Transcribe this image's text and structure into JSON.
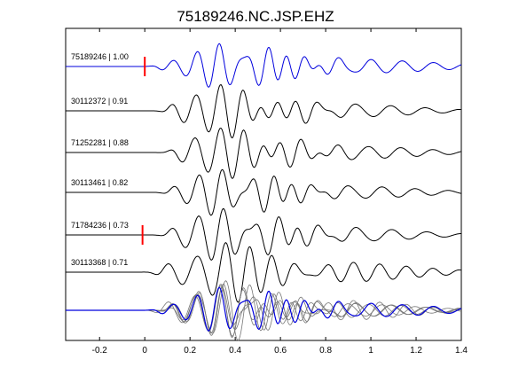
{
  "chart_data": {
    "type": "line",
    "title": "75189246.NC.JSP.EHZ",
    "xlabel": "",
    "ylabel": "",
    "xlim": [
      -0.35,
      1.4
    ],
    "xticks": [
      -0.2,
      0,
      0.2,
      0.4,
      0.6,
      0.8,
      1,
      1.2,
      1.4
    ],
    "xtick_labels": [
      "-0.2",
      "0",
      "0.2",
      "0.4",
      "0.6",
      "0.8",
      "1",
      "1.2",
      "1.4"
    ],
    "grid": false,
    "colors": {
      "reference": "#0000dd",
      "trace": "#000000",
      "stack_gray": "#777777",
      "pick": "#ff0000",
      "axes": "#000000"
    },
    "traces": [
      {
        "label": "75189246 | 1.00",
        "event_id": "75189246",
        "correlation": 1.0,
        "color": "#0000dd",
        "pick_time": 0.0,
        "wave": {
          "onset": 0.05,
          "a": 0.9,
          "packets": [
            {
              "f": 9.6,
              "c": 0.35,
              "w": 0.22,
              "a": 1.0
            },
            {
              "f": 13.1,
              "c": 0.55,
              "w": 0.25,
              "a": 0.6
            },
            {
              "f": 7.2,
              "c": 0.95,
              "w": 0.45,
              "a": 0.35
            }
          ],
          "phase": 0.3
        }
      },
      {
        "label": "30112372 | 0.91",
        "event_id": "30112372",
        "correlation": 0.91,
        "color": "#000000",
        "pick_time": null,
        "wave": {
          "onset": 0.1,
          "a": 1.0,
          "packets": [
            {
              "f": 9.2,
              "c": 0.33,
              "w": 0.22,
              "a": 1.0
            },
            {
              "f": 12.0,
              "c": 0.55,
              "w": 0.22,
              "a": 0.55
            },
            {
              "f": 6.5,
              "c": 0.9,
              "w": 0.4,
              "a": 0.3
            }
          ],
          "phase": 1.1
        }
      },
      {
        "label": "71252281 | 0.88",
        "event_id": "71252281",
        "correlation": 0.88,
        "color": "#000000",
        "pick_time": null,
        "wave": {
          "onset": 0.12,
          "a": 1.0,
          "packets": [
            {
              "f": 8.8,
              "c": 0.33,
              "w": 0.2,
              "a": 1.0
            },
            {
              "f": 11.5,
              "c": 0.56,
              "w": 0.22,
              "a": 0.6
            },
            {
              "f": 7.0,
              "c": 0.92,
              "w": 0.4,
              "a": 0.3
            }
          ],
          "phase": 2.0
        }
      },
      {
        "label": "30113461 | 0.82",
        "event_id": "30113461",
        "correlation": 0.82,
        "color": "#000000",
        "pick_time": null,
        "wave": {
          "onset": 0.1,
          "a": 0.95,
          "packets": [
            {
              "f": 9.0,
              "c": 0.33,
              "w": 0.2,
              "a": 1.0
            },
            {
              "f": 12.5,
              "c": 0.53,
              "w": 0.22,
              "a": 0.6
            },
            {
              "f": 6.8,
              "c": 0.92,
              "w": 0.4,
              "a": 0.3
            }
          ],
          "phase": 0.7
        }
      },
      {
        "label": "71784236 | 0.73",
        "event_id": "71784236",
        "correlation": 0.73,
        "color": "#000000",
        "pick_time": -0.01,
        "wave": {
          "onset": 0.1,
          "a": 1.05,
          "packets": [
            {
              "f": 8.5,
              "c": 0.33,
              "w": 0.22,
              "a": 1.0
            },
            {
              "f": 11.8,
              "c": 0.55,
              "w": 0.24,
              "a": 0.55
            },
            {
              "f": 6.4,
              "c": 0.9,
              "w": 0.4,
              "a": 0.3
            }
          ],
          "phase": 1.6
        }
      },
      {
        "label": "30113368 | 0.71",
        "event_id": "30113368",
        "correlation": 0.71,
        "color": "#000000",
        "pick_time": null,
        "wave": {
          "onset": 0.05,
          "a": 1.0,
          "packets": [
            {
              "f": 8.0,
              "c": 0.3,
              "w": 0.2,
              "a": 1.0
            },
            {
              "f": 10.5,
              "c": 0.5,
              "w": 0.25,
              "a": 0.7
            },
            {
              "f": 8.5,
              "c": 0.85,
              "w": 0.45,
              "a": 0.45
            }
          ],
          "phase": 2.6
        }
      }
    ],
    "stack": {
      "description": "overlay of all traces",
      "reference_color": "#0000dd",
      "other_color": "#777777"
    }
  }
}
